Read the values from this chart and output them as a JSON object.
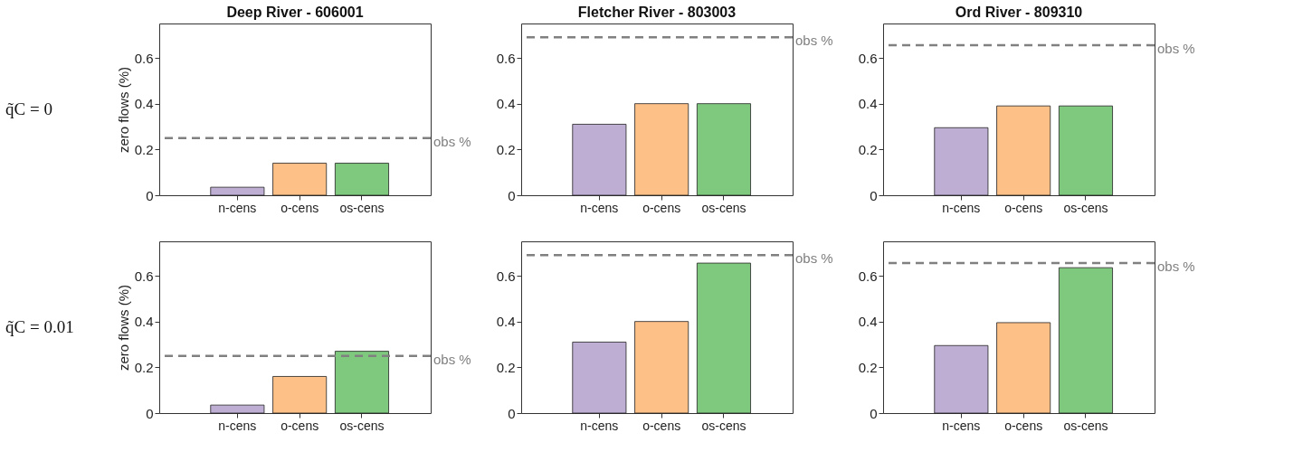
{
  "chart_data": [
    {
      "type": "bar",
      "title": "Deep River - 606001",
      "ylabel": "zero flows (%)",
      "categories": [
        "n-cens",
        "o-cens",
        "os-cens"
      ],
      "values": [
        0.035,
        0.14,
        0.14
      ],
      "colors": [
        "#beaed4",
        "#fdc086",
        "#7fc97f"
      ],
      "ylim": [
        0,
        0.75
      ],
      "yticks": [
        0,
        0.2,
        0.4,
        0.6
      ],
      "ref_lines": [
        {
          "axis": "y",
          "value": 0.25,
          "label": "obs %",
          "color": "#808080",
          "line_style": "dashed"
        }
      ],
      "annotations": [
        "q̃C = 0"
      ]
    },
    {
      "type": "bar",
      "title": "Fletcher River - 803003",
      "categories": [
        "n-cens",
        "o-cens",
        "os-cens"
      ],
      "values": [
        0.31,
        0.4,
        0.4
      ],
      "colors": [
        "#beaed4",
        "#fdc086",
        "#7fc97f"
      ],
      "ylim": [
        0,
        0.75
      ],
      "yticks": [
        0,
        0.2,
        0.4,
        0.6
      ],
      "ref_lines": [
        {
          "axis": "y",
          "value": 0.69,
          "label": "obs %",
          "color": "#808080",
          "line_style": "dashed"
        }
      ]
    },
    {
      "type": "bar",
      "title": "Ord River - 809310",
      "categories": [
        "n-cens",
        "o-cens",
        "os-cens"
      ],
      "values": [
        0.295,
        0.39,
        0.39
      ],
      "colors": [
        "#beaed4",
        "#fdc086",
        "#7fc97f"
      ],
      "ylim": [
        0,
        0.75
      ],
      "yticks": [
        0,
        0.2,
        0.4,
        0.6
      ],
      "ref_lines": [
        {
          "axis": "y",
          "value": 0.655,
          "label": "obs %",
          "color": "#808080",
          "line_style": "dashed"
        }
      ]
    },
    {
      "type": "bar",
      "ylabel": "zero flows (%)",
      "categories": [
        "n-cens",
        "o-cens",
        "os-cens"
      ],
      "values": [
        0.035,
        0.16,
        0.27
      ],
      "colors": [
        "#beaed4",
        "#fdc086",
        "#7fc97f"
      ],
      "ylim": [
        0,
        0.75
      ],
      "yticks": [
        0,
        0.2,
        0.4,
        0.6
      ],
      "ref_lines": [
        {
          "axis": "y",
          "value": 0.25,
          "label": "obs %",
          "color": "#808080",
          "line_style": "dashed"
        }
      ],
      "annotations": [
        "q̃C = 0.01"
      ]
    },
    {
      "type": "bar",
      "categories": [
        "n-cens",
        "o-cens",
        "os-cens"
      ],
      "values": [
        0.31,
        0.4,
        0.655
      ],
      "colors": [
        "#beaed4",
        "#fdc086",
        "#7fc97f"
      ],
      "ylim": [
        0,
        0.75
      ],
      "yticks": [
        0,
        0.2,
        0.4,
        0.6
      ],
      "ref_lines": [
        {
          "axis": "y",
          "value": 0.69,
          "label": "obs %",
          "color": "#808080",
          "line_style": "dashed"
        }
      ]
    },
    {
      "type": "bar",
      "categories": [
        "n-cens",
        "o-cens",
        "os-cens"
      ],
      "values": [
        0.295,
        0.395,
        0.635
      ],
      "colors": [
        "#beaed4",
        "#fdc086",
        "#7fc97f"
      ],
      "ylim": [
        0,
        0.75
      ],
      "yticks": [
        0,
        0.2,
        0.4,
        0.6
      ],
      "ref_lines": [
        {
          "axis": "y",
          "value": 0.655,
          "label": "obs %",
          "color": "#808080",
          "line_style": "dashed"
        }
      ]
    }
  ]
}
